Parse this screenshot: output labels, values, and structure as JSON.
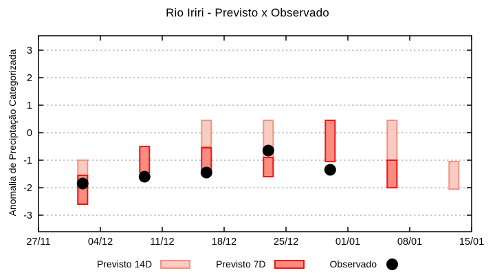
{
  "chart_data": {
    "type": "range-bar",
    "title": "Rio Iriri - Previsto x Observado",
    "ylabel": "Anomalia de Preciptação Categorizada",
    "xlabel": "",
    "ylim": [
      -3.6,
      3.5
    ],
    "y_ticks": [
      3,
      2,
      1,
      0,
      -1,
      -2,
      -3
    ],
    "x_tick_labels": [
      "27/11",
      "04/12",
      "11/12",
      "18/12",
      "25/12",
      "01/01",
      "08/01",
      "15/01"
    ],
    "x_tick_days": [
      0,
      7,
      14,
      21,
      28,
      35,
      42,
      49
    ],
    "x_total_days": 49,
    "grid": "horizontal-dotted",
    "legend_position": "bottom",
    "colors": {
      "previsto_14d_fill": "#f9cbc3",
      "previsto_14d_border": "#f4917f",
      "previsto_7d_fill": "#fa8c80",
      "previsto_7d_border": "#f01414",
      "observado": "#000000",
      "grid": "#a8a8a8",
      "axis": "#000000"
    },
    "series": [
      {
        "name": "Previsto 14D",
        "type": "range"
      },
      {
        "name": "Previsto 7D",
        "type": "range"
      },
      {
        "name": "Observado",
        "type": "point"
      }
    ],
    "points": [
      {
        "date": "02/12",
        "day": 5,
        "previsto_14d": [
          -2.6,
          -1.0
        ],
        "previsto_7d": [
          -2.6,
          -1.55
        ],
        "observado": -1.85
      },
      {
        "date": "09/12",
        "day": 12,
        "previsto_14d": null,
        "previsto_7d": [
          -1.45,
          -0.5
        ],
        "observado": -1.6
      },
      {
        "date": "16/12",
        "day": 19,
        "previsto_14d": [
          -0.5,
          0.45
        ],
        "previsto_7d": [
          -1.45,
          -0.55
        ],
        "observado": -1.45
      },
      {
        "date": "23/12",
        "day": 26,
        "previsto_14d": [
          -1.6,
          0.45
        ],
        "previsto_7d": [
          -1.6,
          -0.9
        ],
        "observado": -0.65
      },
      {
        "date": "30/12",
        "day": 33,
        "previsto_14d": null,
        "previsto_7d": [
          -1.05,
          0.45
        ],
        "observado": -1.35
      },
      {
        "date": "06/01",
        "day": 40,
        "previsto_14d": [
          -2.0,
          0.45
        ],
        "previsto_7d": [
          -2.0,
          -1.0
        ],
        "observado": null
      },
      {
        "date": "13/01",
        "day": 47,
        "previsto_14d": [
          -2.05,
          -1.05
        ],
        "previsto_7d": null,
        "observado": null
      }
    ]
  }
}
